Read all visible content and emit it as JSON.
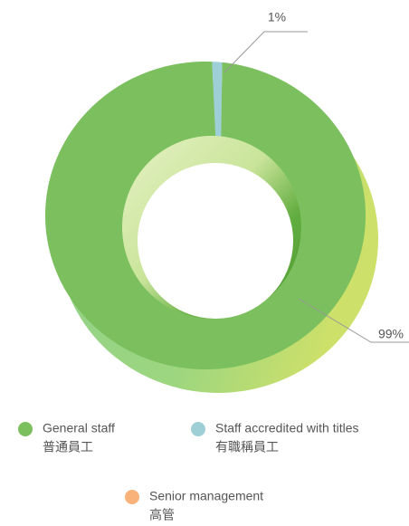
{
  "chart_data": {
    "type": "donut",
    "categories": [
      "General staff",
      "Staff accredited with titles",
      "Senior management"
    ],
    "categories_zh": [
      "普通員工",
      "有職稱員工",
      "高管"
    ],
    "values": [
      99,
      1,
      0
    ],
    "value_labels": [
      "99%",
      "1%",
      null
    ],
    "colors": [
      "#7bbf5e",
      "#9fcfd6",
      "#f9b27a"
    ],
    "legend": "bottom"
  }
}
